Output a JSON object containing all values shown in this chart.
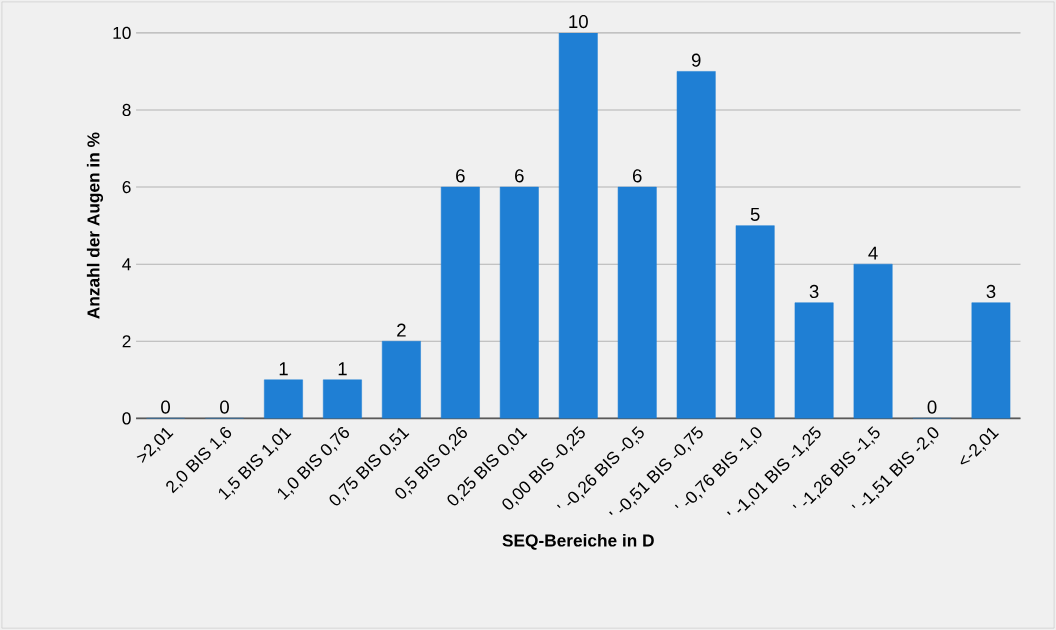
{
  "chart_data": {
    "type": "bar",
    "xlabel": "SEQ-Bereiche in D",
    "ylabel": "Anzahl der Augen in %",
    "categories": [
      ">2,01",
      "2,0 BIS 1,6",
      "1,5 BIS 1,01",
      "1,0 BIS 0,76",
      "0,75 BIS 0,51",
      "0,5 BIS 0,26",
      "0,25 BIS 0,01",
      "0,00 BIS -0,25",
      "' -0,26 BIS -0,5",
      "' -0,51 BIS -0,75",
      "' -0,76 BIS -1,0",
      "' -1,01 BIS -1,25",
      "' -1,26 BIS -1,5",
      "' -1,51 BIS -2,0",
      "<-2,01"
    ],
    "values": [
      0,
      0,
      1,
      1,
      2,
      6,
      6,
      10,
      6,
      9,
      5,
      3,
      4,
      0,
      3
    ],
    "color": "#1f7fd4",
    "ylim": [
      0,
      10
    ],
    "yticks": [
      0,
      2,
      4,
      6,
      8,
      10
    ],
    "grid": "y",
    "data_labels": true
  }
}
